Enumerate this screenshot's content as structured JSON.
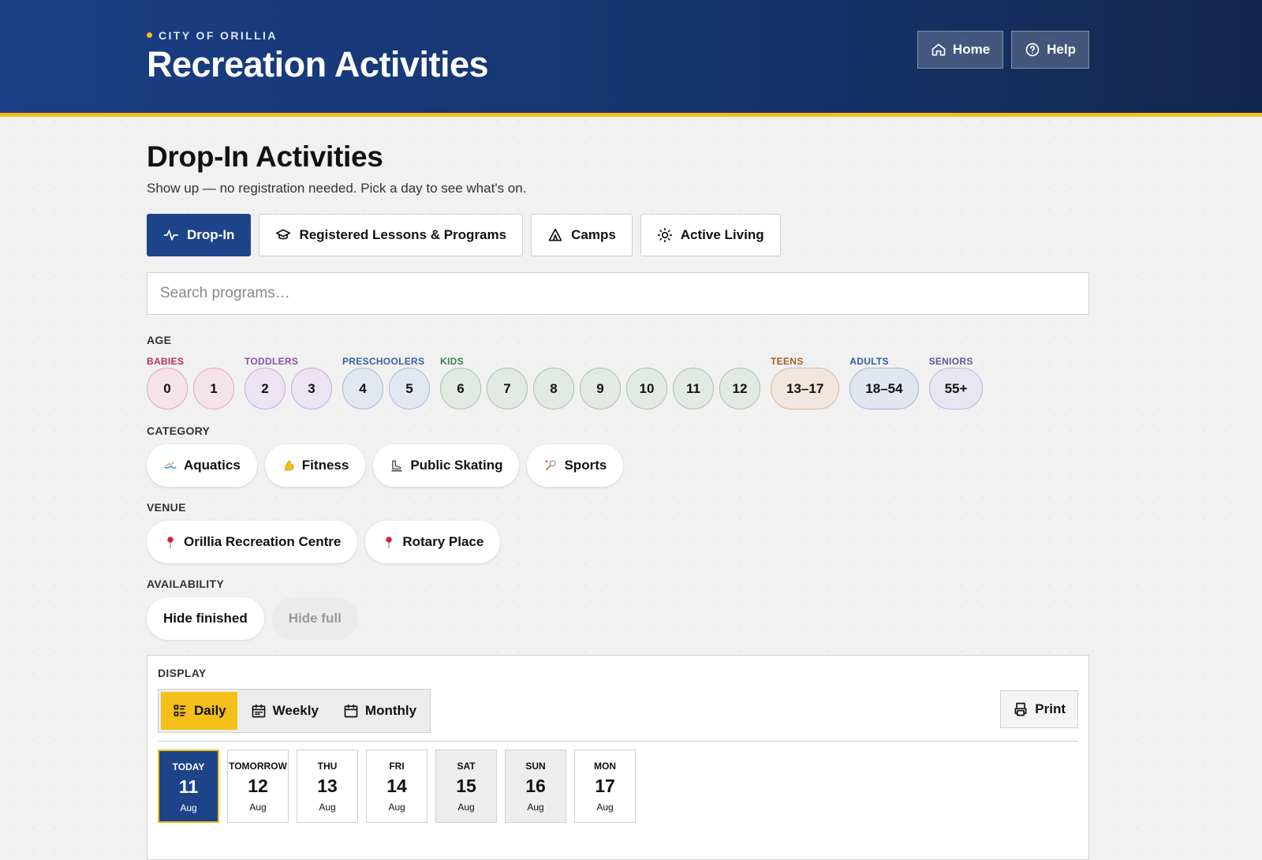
{
  "header": {
    "kicker": "CITY OF ORILLIA",
    "title": "Recreation Activities",
    "nav": [
      "Home",
      "Help"
    ]
  },
  "page": {
    "title": "Drop-In Activities",
    "subtitle": "Show up — no registration needed. Pick a day to see what's on."
  },
  "tabs": [
    "Drop-In",
    "Registered Lessons & Programs",
    "Camps",
    "Active Living"
  ],
  "search": {
    "placeholder": "Search programs…"
  },
  "age": {
    "label": "AGE",
    "groups": [
      {
        "name": "BABIES",
        "options": [
          "0",
          "1"
        ]
      },
      {
        "name": "TODDLERS",
        "options": [
          "2",
          "3"
        ]
      },
      {
        "name": "PRESCHOOLERS",
        "options": [
          "4",
          "5"
        ]
      },
      {
        "name": "KIDS",
        "options": [
          "6",
          "7",
          "8",
          "9",
          "10",
          "11",
          "12"
        ]
      },
      {
        "name": "TEENS",
        "options": [
          "13–17"
        ]
      },
      {
        "name": "ADULTS",
        "options": [
          "18–54"
        ]
      },
      {
        "name": "SENIORS",
        "options": [
          "55+"
        ]
      }
    ]
  },
  "category": {
    "label": "CATEGORY",
    "options": [
      "Aquatics",
      "Fitness",
      "Public Skating",
      "Sports"
    ]
  },
  "venue": {
    "label": "VENUE",
    "options": [
      "Orillia Recreation Centre",
      "Rotary Place"
    ]
  },
  "availability": {
    "label": "AVAILABILITY",
    "options": [
      "Hide finished",
      "Hide full"
    ]
  },
  "display": {
    "label": "DISPLAY",
    "modes": [
      "Daily",
      "Weekly",
      "Monthly"
    ],
    "print": "Print"
  },
  "days": [
    {
      "day": "TODAY",
      "date": "11",
      "month": "Aug"
    },
    {
      "day": "TOMORROW",
      "date": "12",
      "month": "Aug"
    },
    {
      "day": "THU",
      "date": "13",
      "month": "Aug"
    },
    {
      "day": "FRI",
      "date": "14",
      "month": "Aug"
    },
    {
      "day": "SAT",
      "date": "15",
      "month": "Aug"
    },
    {
      "day": "SUN",
      "date": "16",
      "month": "Aug"
    },
    {
      "day": "MON",
      "date": "17",
      "month": "Aug"
    }
  ]
}
